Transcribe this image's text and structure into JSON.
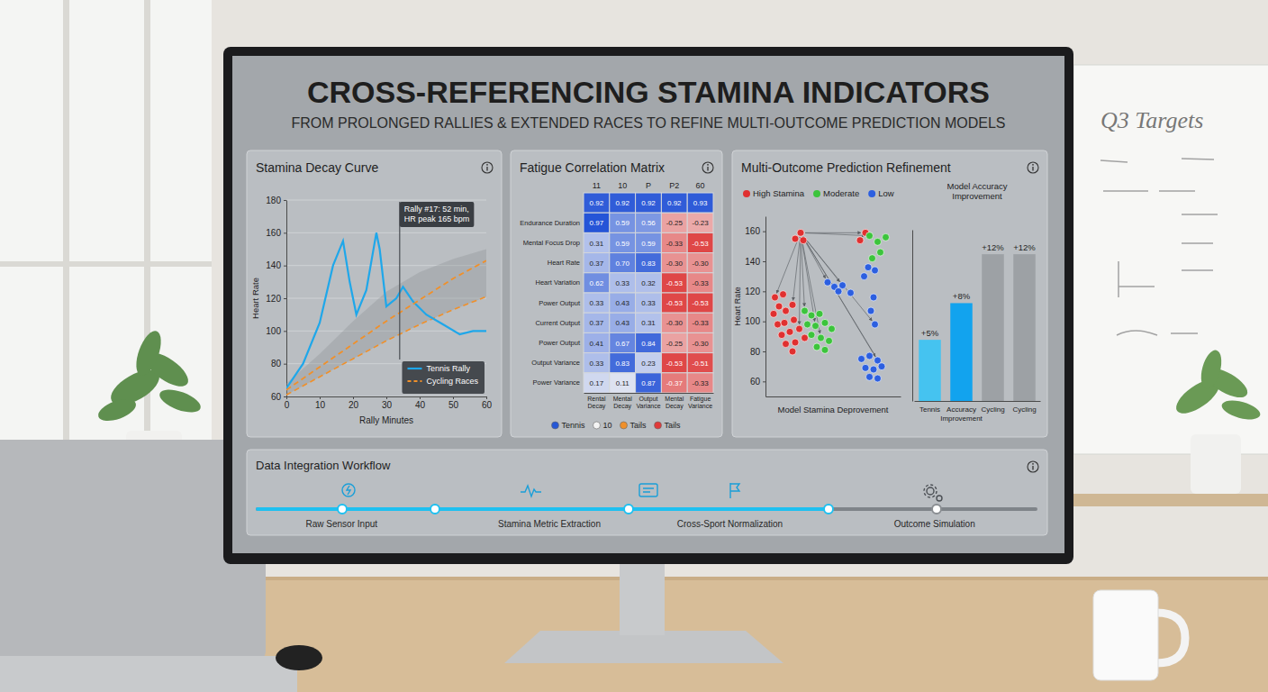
{
  "header": {
    "title": "CROSS-REFERENCING STAMINA INDICATORS",
    "subtitle": "FROM PROLONGED RALLIES & EXTENDED RACES TO REFINE MULTI-OUTCOME PREDICTION MODELS"
  },
  "chart_data": [
    {
      "type": "line",
      "title": "Stamina Decay Curve",
      "x_label": "Rally Minutes",
      "y_label": "Heart Rate",
      "xlim": [
        0,
        60
      ],
      "xticks": [
        0,
        10,
        20,
        30,
        40,
        50,
        60
      ],
      "ylim": [
        60,
        180
      ],
      "yticks": [
        60,
        80,
        100,
        120,
        140,
        160,
        180
      ],
      "grid": true,
      "legend": "lower right",
      "series": [
        {
          "name": "Tennis Rally",
          "color": "#1ea7ea",
          "line_style": "solid",
          "x": [
            0,
            5,
            10,
            14,
            17,
            19,
            21,
            24,
            27,
            28,
            30,
            33,
            35,
            38,
            42,
            47,
            52,
            56,
            60
          ],
          "values": [
            65,
            80,
            105,
            140,
            155,
            130,
            110,
            125,
            160,
            150,
            115,
            120,
            127,
            118,
            110,
            104,
            98,
            100,
            100
          ]
        },
        {
          "name": "Cycling Races",
          "color": "#f0902a",
          "line_style": "dashed",
          "x": [
            0,
            10,
            20,
            30,
            40,
            50,
            60
          ],
          "values": [
            64,
            78,
            92,
            106,
            119,
            132,
            143
          ]
        }
      ],
      "band": {
        "x": [
          0,
          10,
          20,
          30,
          40,
          50,
          60
        ],
        "lower": [
          61,
          72,
          83,
          94,
          104,
          113,
          121
        ],
        "upper": [
          68,
          86,
          106,
          124,
          136,
          144,
          150
        ]
      },
      "annotation": {
        "x": 34,
        "lines": [
          "Rally #17: 52 min,",
          "HR peak 165 bpm"
        ]
      }
    },
    {
      "type": "heatmap",
      "title": "Fatigue Correlation Matrix",
      "top_labels": [
        "11",
        "10",
        "P",
        "P2",
        "60"
      ],
      "categories": [
        "Rental Decay",
        "Mental Decay",
        "Output Variance",
        "Mental Decay",
        "Fatigue Variance"
      ],
      "rows": [
        null,
        "Endurance Duration",
        "Mental Focus Drop",
        "Heart Rate",
        "Heart Variation",
        "Power Output",
        "Current Output",
        "Power Output",
        "Output Variance",
        "Power Variance"
      ],
      "values": [
        [
          0.92,
          0.92,
          0.92,
          0.92,
          0.93
        ],
        [
          0.97,
          0.59,
          0.56,
          -0.25,
          -0.23
        ],
        [
          0.31,
          0.59,
          0.59,
          -0.33,
          -0.53
        ],
        [
          0.37,
          0.7,
          0.83,
          -0.3,
          -0.3
        ],
        [
          0.62,
          0.33,
          0.32,
          -0.53,
          -0.33
        ],
        [
          0.33,
          0.43,
          0.33,
          -0.53,
          -0.53
        ],
        [
          0.37,
          0.43,
          0.31,
          -0.3,
          -0.33
        ],
        [
          0.41,
          0.67,
          0.84,
          -0.25,
          -0.3
        ],
        [
          0.33,
          0.83,
          0.23,
          -0.53,
          -0.51
        ],
        [
          0.17,
          0.11,
          0.87,
          -0.37,
          -0.33
        ]
      ],
      "value_labels": [
        [
          "0.92",
          "0.92",
          "0.92",
          "0.92",
          "0.93"
        ],
        [
          "0.97",
          "0.59",
          "0.56",
          "-0.25",
          "-0.23"
        ],
        [
          "0.31",
          "0.59",
          "0.59",
          "-0.33",
          "-0.53"
        ],
        [
          "0.37",
          "0.70",
          "0.83",
          "-0.30",
          "-0.30"
        ],
        [
          "0.62",
          "0.33",
          "0.32",
          "-0.53",
          "-0.33"
        ],
        [
          "0.33",
          "0.43",
          "0.33",
          "-0.53",
          "-0.53"
        ],
        [
          "0.37",
          "0.43",
          "0.31",
          "-0.30",
          "-0.33"
        ],
        [
          "0.41",
          "0.67",
          "0.84",
          "-0.25",
          "-0.30"
        ],
        [
          "0.33",
          "0.83",
          "0.23",
          "-0.53",
          "-0.51"
        ],
        [
          "0.17",
          "0.11",
          "0.87",
          "-0.37",
          "-0.33"
        ]
      ],
      "zlim": [
        -0.6,
        1
      ],
      "data_labels": true,
      "legend": "bottom",
      "legend_items": [
        {
          "name": "Tennis",
          "color": "#2557d6"
        },
        {
          "name": "10",
          "color": "#f4f4f4"
        },
        {
          "name": "Tails",
          "color": "#f0902a"
        },
        {
          "name": "Tails",
          "color": "#e03a3a"
        }
      ]
    },
    {
      "type": "scatter",
      "title": "Multi-Outcome Prediction Refinement",
      "x_label": "Model Stamina Deprovement",
      "y_label": "Heart Rate",
      "xlim": [
        0,
        100
      ],
      "ylim": [
        50,
        170
      ],
      "yticks": [
        60,
        80,
        100,
        120,
        140,
        160
      ],
      "tick_labels": "y",
      "legend": "top",
      "series": [
        {
          "name": "High Stamina",
          "color": "#e03030",
          "x": [
            26,
            22,
            28,
            74,
            70,
            7,
            13,
            10,
            6,
            15,
            20,
            9,
            14,
            21,
            12,
            18,
            25,
            15,
            22,
            29,
            20
          ],
          "values": [
            159,
            155,
            154,
            159,
            154,
            116,
            118,
            110,
            105,
            107,
            111,
            98,
            99,
            101,
            91,
            93,
            95,
            85,
            86,
            89,
            80
          ]
        },
        {
          "name": "Moderate",
          "color": "#3cc43c",
          "x": [
            77,
            83,
            89,
            85,
            79,
            29,
            34,
            40,
            31,
            37,
            44,
            49,
            34,
            41,
            47,
            38,
            44
          ],
          "values": [
            157,
            153,
            156,
            146,
            142,
            107,
            104,
            105,
            98,
            97,
            99,
            95,
            91,
            89,
            87,
            83,
            81
          ]
        },
        {
          "name": "Low",
          "color": "#2c5fe0",
          "x": [
            76,
            81,
            73,
            46,
            51,
            57,
            54,
            63,
            80,
            78,
            81,
            71,
            77,
            83,
            74,
            80,
            86,
            77,
            83
          ],
          "values": [
            136,
            134,
            130,
            126,
            123,
            124,
            120,
            119,
            116,
            107,
            98,
            75,
            77,
            74,
            69,
            68,
            70,
            63,
            62
          ]
        }
      ],
      "links": {
        "from": [
          0,
          0
        ],
        "to": [
          [
            0,
            5
          ],
          [
            0,
            10
          ],
          [
            0,
            16
          ],
          [
            1,
            5
          ],
          [
            1,
            9
          ],
          [
            1,
            13
          ],
          [
            2,
            3
          ],
          [
            2,
            5
          ],
          [
            2,
            10
          ],
          [
            2,
            13
          ],
          [
            2,
            16
          ],
          [
            0,
            3
          ],
          [
            1,
            0
          ]
        ]
      }
    },
    {
      "type": "bar",
      "title": "Model Accuracy Improvement",
      "categories": [
        "Tennis",
        "Accuracy Improvement",
        "Cycling",
        "Cycling"
      ],
      "values": [
        5,
        8,
        12,
        12
      ],
      "value_labels": [
        "+5%",
        "+8%",
        "+12%",
        "+12%"
      ],
      "colors": [
        "#45c3f0",
        "#12a3ee",
        "#9da1a5",
        "#9da1a5"
      ],
      "ylim": [
        0,
        14
      ],
      "data_labels": true,
      "tick_labels": "x"
    }
  ],
  "workflow": {
    "title": "Data Integration Workflow",
    "steps": [
      "Raw Sensor Input",
      "Stamina Metric Extraction",
      "Cross-Sport Normalization",
      "Outcome Simulation"
    ]
  },
  "whiteboard": {
    "title": "Q3 Targets"
  }
}
